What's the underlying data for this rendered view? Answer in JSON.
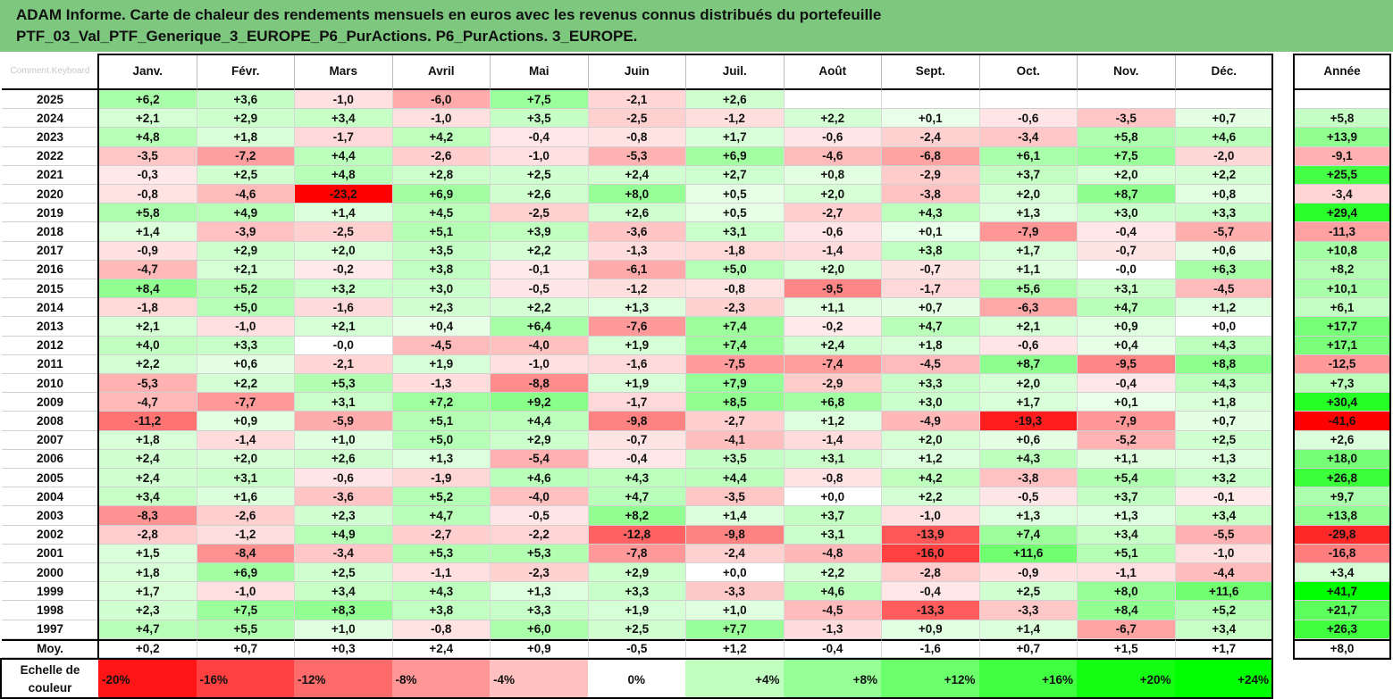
{
  "title": {
    "line1": "ADAM Informe. Carte de chaleur des rendements mensuels en euros avec les revenus connus distribués du portefeuille",
    "line2": "PTF_03_Val_PTF_Generique_3_EUROPE_P6_PurActions. P6_PurActions. 3_EUROPE."
  },
  "corner_note": "Comment.Keyboard",
  "chart_data": {
    "type": "heatmap",
    "title": "ADAM Informe. Carte de chaleur des rendements mensuels en euros avec les revenus connus distribués du portefeuille PTF_03_Val_PTF_Generique_3_EUROPE_P6_PurActions. P6_PurActions. 3_EUROPE.",
    "columns": [
      "Janv.",
      "Févr.",
      "Mars",
      "Avril",
      "Mai",
      "Juin",
      "Juil.",
      "Août",
      "Sept.",
      "Oct.",
      "Nov.",
      "Déc."
    ],
    "year_column": "Année",
    "rows": [
      {
        "year": "2025",
        "values": [
          "+6,2",
          "+3,6",
          "-1,0",
          "-6,0",
          "+7,5",
          "-2,1",
          "+2,6",
          "",
          "",
          "",
          "",
          ""
        ],
        "annual": ""
      },
      {
        "year": "2024",
        "values": [
          "+2,1",
          "+2,9",
          "+3,4",
          "-1,0",
          "+3,5",
          "-2,5",
          "-1,2",
          "+2,2",
          "+0,1",
          "-0,6",
          "-3,5",
          "+0,7"
        ],
        "annual": "+5,8"
      },
      {
        "year": "2023",
        "values": [
          "+4,8",
          "+1,8",
          "-1,7",
          "+4,2",
          "-0,4",
          "-0,8",
          "+1,7",
          "-0,6",
          "-2,4",
          "-3,4",
          "+5,8",
          "+4,6"
        ],
        "annual": "+13,9"
      },
      {
        "year": "2022",
        "values": [
          "-3,5",
          "-7,2",
          "+4,4",
          "-2,6",
          "-1,0",
          "-5,3",
          "+6,9",
          "-4,6",
          "-6,8",
          "+6,1",
          "+7,5",
          "-2,0"
        ],
        "annual": "-9,1"
      },
      {
        "year": "2021",
        "values": [
          "-0,3",
          "+2,5",
          "+4,8",
          "+2,8",
          "+2,5",
          "+2,4",
          "+2,7",
          "+0,8",
          "-2,9",
          "+3,7",
          "+2,0",
          "+2,2"
        ],
        "annual": "+25,5"
      },
      {
        "year": "2020",
        "values": [
          "-0,8",
          "-4,6",
          "-23,2",
          "+6,9",
          "+2,6",
          "+8,0",
          "+0,5",
          "+2,0",
          "-3,8",
          "+2,0",
          "+8,7",
          "+0,8"
        ],
        "annual": "-3,4"
      },
      {
        "year": "2019",
        "values": [
          "+5,8",
          "+4,9",
          "+1,4",
          "+4,5",
          "-2,5",
          "+2,6",
          "+0,5",
          "-2,7",
          "+4,3",
          "+1,3",
          "+3,0",
          "+3,3"
        ],
        "annual": "+29,4"
      },
      {
        "year": "2018",
        "values": [
          "+1,4",
          "-3,9",
          "-2,5",
          "+5,1",
          "+3,9",
          "-3,6",
          "+3,1",
          "-0,6",
          "+0,1",
          "-7,9",
          "-0,4",
          "-5,7"
        ],
        "annual": "-11,3"
      },
      {
        "year": "2017",
        "values": [
          "-0,9",
          "+2,9",
          "+2,0",
          "+3,5",
          "+2,2",
          "-1,3",
          "-1,8",
          "-1,4",
          "+3,8",
          "+1,7",
          "-0,7",
          "+0,6"
        ],
        "annual": "+10,8"
      },
      {
        "year": "2016",
        "values": [
          "-4,7",
          "+2,1",
          "-0,2",
          "+3,8",
          "-0,1",
          "-6,1",
          "+5,0",
          "+2,0",
          "-0,7",
          "+1,1",
          "-0,0",
          "+6,3"
        ],
        "annual": "+8,2"
      },
      {
        "year": "2015",
        "values": [
          "+8,4",
          "+5,2",
          "+3,2",
          "+3,0",
          "-0,5",
          "-1,2",
          "-0,8",
          "-9,5",
          "-1,7",
          "+5,6",
          "+3,1",
          "-4,5"
        ],
        "annual": "+10,1"
      },
      {
        "year": "2014",
        "values": [
          "-1,8",
          "+5,0",
          "-1,6",
          "+2,3",
          "+2,2",
          "+1,3",
          "-2,3",
          "+1,1",
          "+0,7",
          "-6,3",
          "+4,7",
          "+1,2"
        ],
        "annual": "+6,1"
      },
      {
        "year": "2013",
        "values": [
          "+2,1",
          "-1,0",
          "+2,1",
          "+0,4",
          "+6,4",
          "-7,6",
          "+7,4",
          "-0,2",
          "+4,7",
          "+2,1",
          "+0,9",
          "+0,0"
        ],
        "annual": "+17,7"
      },
      {
        "year": "2012",
        "values": [
          "+4,0",
          "+3,3",
          "-0,0",
          "-4,5",
          "-4,0",
          "+1,9",
          "+7,4",
          "+2,4",
          "+1,8",
          "-0,6",
          "+0,4",
          "+4,3"
        ],
        "annual": "+17,1"
      },
      {
        "year": "2011",
        "values": [
          "+2,2",
          "+0,6",
          "-2,1",
          "+1,9",
          "-1,0",
          "-1,6",
          "-7,5",
          "-7,4",
          "-4,5",
          "+8,7",
          "-9,5",
          "+8,8"
        ],
        "annual": "-12,5"
      },
      {
        "year": "2010",
        "values": [
          "-5,3",
          "+2,2",
          "+5,3",
          "-1,3",
          "-8,8",
          "+1,9",
          "+7,9",
          "-2,9",
          "+3,3",
          "+2,0",
          "-0,4",
          "+4,3"
        ],
        "annual": "+7,3"
      },
      {
        "year": "2009",
        "values": [
          "-4,7",
          "-7,7",
          "+3,1",
          "+7,2",
          "+9,2",
          "-1,7",
          "+8,5",
          "+6,8",
          "+3,0",
          "+1,7",
          "+0,1",
          "+1,8"
        ],
        "annual": "+30,4"
      },
      {
        "year": "2008",
        "values": [
          "-11,2",
          "+0,9",
          "-5,9",
          "+5,1",
          "+4,4",
          "-9,8",
          "-2,7",
          "+1,2",
          "-4,9",
          "-19,3",
          "-7,9",
          "+0,7"
        ],
        "annual": "-41,6"
      },
      {
        "year": "2007",
        "values": [
          "+1,8",
          "-1,4",
          "+1,0",
          "+5,0",
          "+2,9",
          "-0,7",
          "-4,1",
          "-1,4",
          "+2,0",
          "+0,6",
          "-5,2",
          "+2,5"
        ],
        "annual": "+2,6"
      },
      {
        "year": "2006",
        "values": [
          "+2,4",
          "+2,0",
          "+2,6",
          "+1,3",
          "-5,4",
          "-0,4",
          "+3,5",
          "+3,1",
          "+1,2",
          "+4,3",
          "+1,1",
          "+1,3"
        ],
        "annual": "+18,0"
      },
      {
        "year": "2005",
        "values": [
          "+2,4",
          "+3,1",
          "-0,6",
          "-1,9",
          "+4,6",
          "+4,3",
          "+4,4",
          "-0,8",
          "+4,2",
          "-3,8",
          "+5,4",
          "+3,2"
        ],
        "annual": "+26,8"
      },
      {
        "year": "2004",
        "values": [
          "+3,4",
          "+1,6",
          "-3,6",
          "+5,2",
          "-4,0",
          "+4,7",
          "-3,5",
          "+0,0",
          "+2,2",
          "-0,5",
          "+3,7",
          "-0,1"
        ],
        "annual": "+9,7"
      },
      {
        "year": "2003",
        "values": [
          "-8,3",
          "-2,6",
          "+2,3",
          "+4,7",
          "-0,5",
          "+8,2",
          "+1,4",
          "+3,7",
          "-1,0",
          "+1,3",
          "+1,3",
          "+3,4"
        ],
        "annual": "+13,8"
      },
      {
        "year": "2002",
        "values": [
          "-2,8",
          "-1,2",
          "+4,9",
          "-2,7",
          "-2,2",
          "-12,8",
          "-9,8",
          "+3,1",
          "-13,9",
          "+7,4",
          "+3,4",
          "-5,5"
        ],
        "annual": "-29,8"
      },
      {
        "year": "2001",
        "values": [
          "+1,5",
          "-8,4",
          "-3,4",
          "+5,3",
          "+5,3",
          "-7,8",
          "-2,4",
          "-4,8",
          "-16,0",
          "+11,6",
          "+5,1",
          "-1,0"
        ],
        "annual": "-16,8"
      },
      {
        "year": "2000",
        "values": [
          "+1,8",
          "+6,9",
          "+2,5",
          "-1,1",
          "-2,3",
          "+2,9",
          "+0,0",
          "+2,2",
          "-2,8",
          "-0,9",
          "-1,1",
          "-4,4"
        ],
        "annual": "+3,4"
      },
      {
        "year": "1999",
        "values": [
          "+1,7",
          "-1,0",
          "+3,4",
          "+4,3",
          "+1,3",
          "+3,3",
          "-3,3",
          "+4,6",
          "-0,4",
          "+2,5",
          "+8,0",
          "+11,6"
        ],
        "annual": "+41,7"
      },
      {
        "year": "1998",
        "values": [
          "+2,3",
          "+7,5",
          "+8,3",
          "+3,8",
          "+3,3",
          "+1,9",
          "+1,0",
          "-4,5",
          "-13,3",
          "-3,3",
          "+8,4",
          "+5,2"
        ],
        "annual": "+21,7"
      },
      {
        "year": "1997",
        "values": [
          "+4,7",
          "+5,5",
          "+1,0",
          "-0,8",
          "+6,0",
          "+2,5",
          "+7,7",
          "-1,3",
          "+0,9",
          "+1,4",
          "-6,7",
          "+3,4"
        ],
        "annual": "+26,3"
      },
      {
        "year": "Moy.",
        "values": [
          "+0,2",
          "+0,7",
          "+0,3",
          "+2,4",
          "+0,9",
          "-0,5",
          "+1,2",
          "-0,4",
          "-1,6",
          "+0,7",
          "+1,5",
          "+1,7"
        ],
        "annual": "+8,0"
      }
    ],
    "color_scale": {
      "label": "Echelle de couleur",
      "stops": [
        "-20%",
        "-16%",
        "-12%",
        "-8%",
        "-4%",
        "0%",
        "+4%",
        "+8%",
        "+12%",
        "+16%",
        "+20%",
        "+24%"
      ],
      "negative_color": "#ff0000",
      "positive_color": "#00ff00",
      "neutral_color": "#ffffff"
    }
  }
}
